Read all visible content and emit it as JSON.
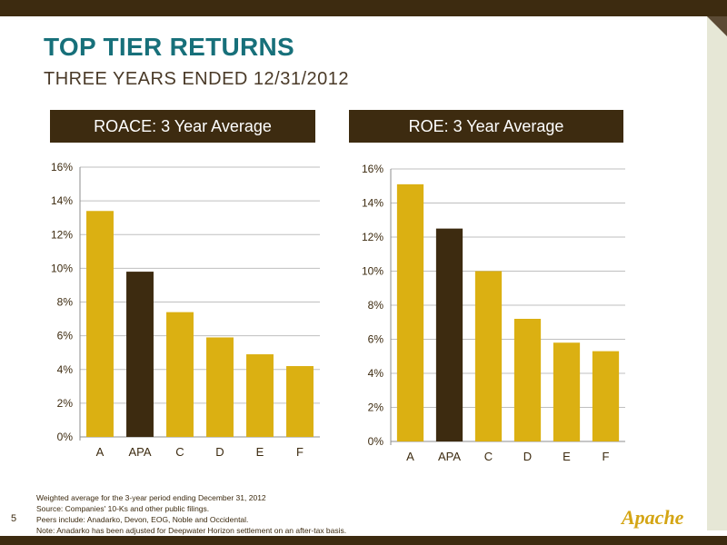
{
  "title": "TOP TIER RETURNS",
  "subtitle": "THREE YEARS ENDED 12/31/2012",
  "colors": {
    "bar": "#dbb012",
    "highlight": "#3d2b10",
    "grid": "#bfbfbf",
    "header_bg": "#3d2b10",
    "title": "#17707a"
  },
  "chart_data": [
    {
      "type": "bar",
      "title": "ROACE: 3 Year Average",
      "categories": [
        "A",
        "APA",
        "C",
        "D",
        "E",
        "F"
      ],
      "values": [
        13.4,
        9.8,
        7.4,
        5.9,
        4.9,
        4.2
      ],
      "highlight": "APA",
      "ylim": [
        0,
        16
      ],
      "yticks": [
        "0%",
        "2%",
        "4%",
        "6%",
        "8%",
        "10%",
        "12%",
        "14%",
        "16%"
      ],
      "grid": true,
      "xlabel": "",
      "ylabel": ""
    },
    {
      "type": "bar",
      "title": "ROE: 3 Year Average",
      "categories": [
        "A",
        "APA",
        "C",
        "D",
        "E",
        "F"
      ],
      "values": [
        15.1,
        12.5,
        10.0,
        7.2,
        5.8,
        5.3
      ],
      "highlight": "APA",
      "ylim": [
        0,
        16
      ],
      "yticks": [
        "0%",
        "2%",
        "4%",
        "6%",
        "8%",
        "10%",
        "12%",
        "14%",
        "16%"
      ],
      "grid": true,
      "xlabel": "",
      "ylabel": ""
    }
  ],
  "footnotes": [
    "Weighted average for the 3-year period ending December 31, 2012",
    "Source: Companies' 10-Ks and other public filings.",
    "Peers include: Anadarko, Devon, EOG, Noble and Occidental.",
    "Note: Anadarko has been adjusted for Deepwater Horizon settlement on an after-tax basis."
  ],
  "page_number": "5",
  "logo_text": "Apache"
}
